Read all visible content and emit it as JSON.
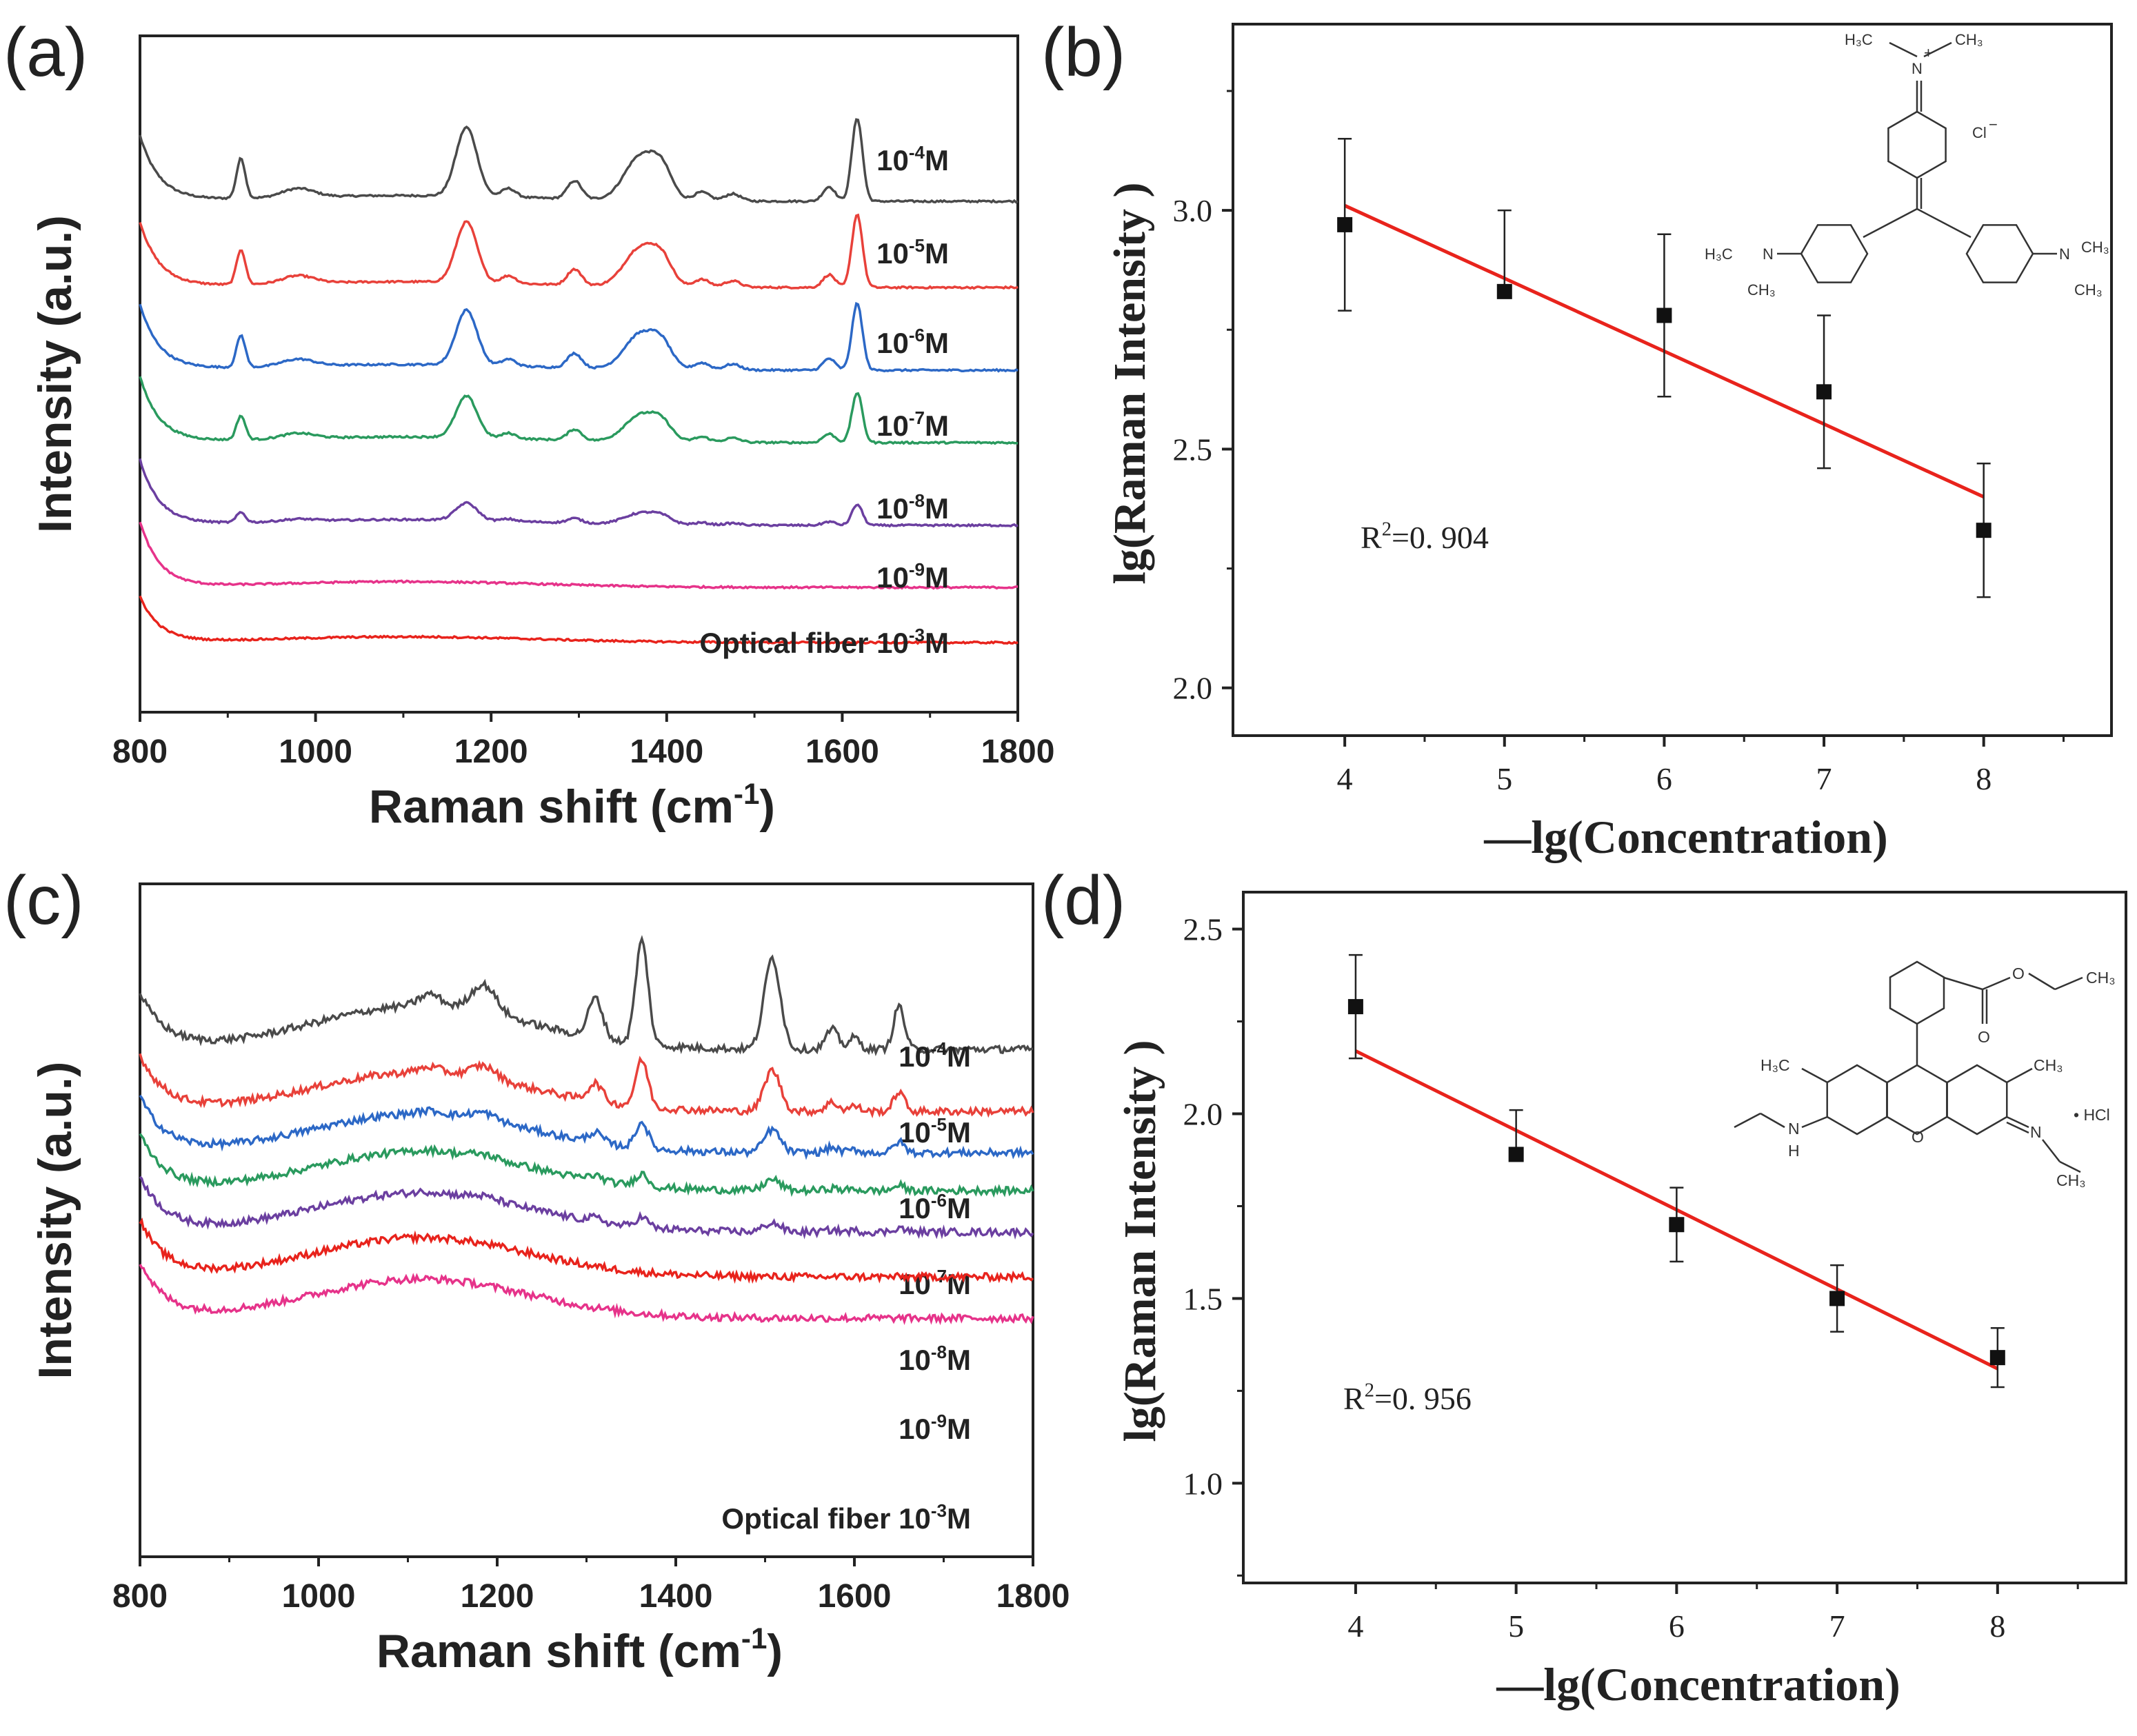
{
  "chart_data": [
    {
      "panel": "(a)",
      "type": "line",
      "xlabel": "Raman shift (cm",
      "xlabel_sup": "-1",
      "xlabel_tail": ")",
      "ylabel": "Intensity (a.u.)",
      "xlim": [
        800,
        1800
      ],
      "xticks": [
        "800",
        "1000",
        "1200",
        "1400",
        "1600",
        "1800"
      ],
      "peaks": [
        915,
        980,
        1172,
        1220,
        1295,
        1370,
        1395,
        1440,
        1475,
        1585,
        1617
      ],
      "series": [
        {
          "label_base": "10",
          "label_exp": "-4",
          "label_tail": "M",
          "color": "#4a4a4a",
          "amplitude": 1.0,
          "baseline": 0.0
        },
        {
          "label_base": "10",
          "label_exp": "-5",
          "label_tail": "M",
          "color": "#e8413a",
          "amplitude": 0.88,
          "baseline": 0.0
        },
        {
          "label_base": "10",
          "label_exp": "-6",
          "label_tail": "M",
          "color": "#2c68c6",
          "amplitude": 0.8,
          "baseline": 0.0
        },
        {
          "label_base": "10",
          "label_exp": "-7",
          "label_tail": "M",
          "color": "#2a9a5e",
          "amplitude": 0.6,
          "baseline": 0.0
        },
        {
          "label_base": "10",
          "label_exp": "-8",
          "label_tail": "M",
          "color": "#6b3fa0",
          "amplitude": 0.25,
          "baseline": 0.0
        },
        {
          "label_base": "10",
          "label_exp": "-9",
          "label_tail": "M",
          "color": "#e6338a",
          "amplitude": 0.0,
          "baseline": 0.0
        },
        {
          "label_base": "Optical fiber 10",
          "label_exp": "-3",
          "label_tail": "M",
          "color": "#e8231c",
          "amplitude": 0.0,
          "baseline": 0.0
        }
      ]
    },
    {
      "panel": "(b)",
      "type": "scatter",
      "xlabel": "—lg(Concentration)",
      "ylabel": "lg(Raman Intensity )",
      "xlim": [
        3.3,
        8.8
      ],
      "ylim": [
        1.9,
        3.39
      ],
      "xticks": [
        "4",
        "5",
        "6",
        "7",
        "8"
      ],
      "yticks": [
        "2.0",
        "2.5",
        "3.0"
      ],
      "x": [
        4,
        5,
        6,
        7,
        8
      ],
      "y": [
        2.97,
        2.83,
        2.78,
        2.62,
        2.33
      ],
      "err": [
        0.18,
        0.17,
        0.17,
        0.16,
        0.14
      ],
      "fit": {
        "x": [
          4,
          8
        ],
        "y": [
          3.01,
          2.4
        ],
        "color": "#e8231c"
      },
      "annotation_base": "R",
      "annotation_exp": "2",
      "annotation_tail": "=0. 904",
      "molecule": {
        "label_top": "H₃C",
        "label_top_n": "N",
        "label_top_plus": "+",
        "label_top_ch3": "CH₃",
        "label_counter_ion": "Cl",
        "label_counter_charge": "−",
        "label_left_h3c": "H₃C",
        "label_left_n": "N",
        "label_left_ch3": "CH₃",
        "label_right_n": "N",
        "label_right_ch3": "CH₃",
        "label_right_ch3_b": "CH₃"
      }
    },
    {
      "panel": "(c)",
      "type": "line",
      "xlabel": "Raman shift (cm",
      "xlabel_sup": "-1",
      "xlabel_tail": ")",
      "ylabel": "Intensity (a.u.)",
      "xlim": [
        800,
        1800
      ],
      "xticks": [
        "800",
        "1000",
        "1200",
        "1400",
        "1600",
        "1800"
      ],
      "peaks": [
        1125,
        1185,
        1310,
        1362,
        1508,
        1575,
        1600,
        1650
      ],
      "series": [
        {
          "label_base": "10",
          "label_exp": "-4",
          "label_tail": "M",
          "color": "#4a4a4a",
          "amplitude": 1.0
        },
        {
          "label_base": "10",
          "label_exp": "-5",
          "label_tail": "M",
          "color": "#e8413a",
          "amplitude": 0.45
        },
        {
          "label_base": "10",
          "label_exp": "-6",
          "label_tail": "M",
          "color": "#2c68c6",
          "amplitude": 0.25
        },
        {
          "label_base": "10",
          "label_exp": "-7",
          "label_tail": "M",
          "color": "#2a9a5e",
          "amplitude": 0.12
        },
        {
          "label_base": "10",
          "label_exp": "-8",
          "label_tail": "M",
          "color": "#6b3fa0",
          "amplitude": 0.1
        },
        {
          "label_base": "10",
          "label_exp": "-9",
          "label_tail": "M",
          "color": "#e8231c",
          "amplitude": 0.0
        },
        {
          "label_base": "Optical fiber 10",
          "label_exp": "-3",
          "label_tail": "M",
          "color": "#e6338a",
          "amplitude": 0.0
        }
      ]
    },
    {
      "panel": "(d)",
      "type": "scatter",
      "xlabel": "—lg(Concentration)",
      "ylabel": "lg(Raman Intensity )",
      "xlim": [
        3.3,
        8.8
      ],
      "ylim": [
        0.73,
        2.6
      ],
      "xticks": [
        "4",
        "5",
        "6",
        "7",
        "8"
      ],
      "yticks": [
        "1.0",
        "1.5",
        "2.0",
        "2.5"
      ],
      "x": [
        4,
        5,
        6,
        7,
        8
      ],
      "y": [
        2.29,
        1.89,
        1.7,
        1.5,
        1.34
      ],
      "err": [
        0.14,
        0.12,
        0.1,
        0.09,
        0.08
      ],
      "fit": {
        "x": [
          4,
          8
        ],
        "y": [
          2.17,
          1.31
        ],
        "color": "#e8231c"
      },
      "annotation_base": "R",
      "annotation_exp": "2",
      "annotation_tail": "=0. 956",
      "molecule": {
        "label_ester_o": "O",
        "label_ester_o2": "O",
        "label_ester_ch3": "CH₃",
        "label_h3c": "H₃C",
        "label_ch3": "CH₃",
        "label_nh_n": "N",
        "label_nh_h": "H",
        "label_ring_o": "O",
        "label_imine_n": "N",
        "label_hcl": "• HCl",
        "label_bottom_ch3": "CH₃"
      }
    }
  ]
}
